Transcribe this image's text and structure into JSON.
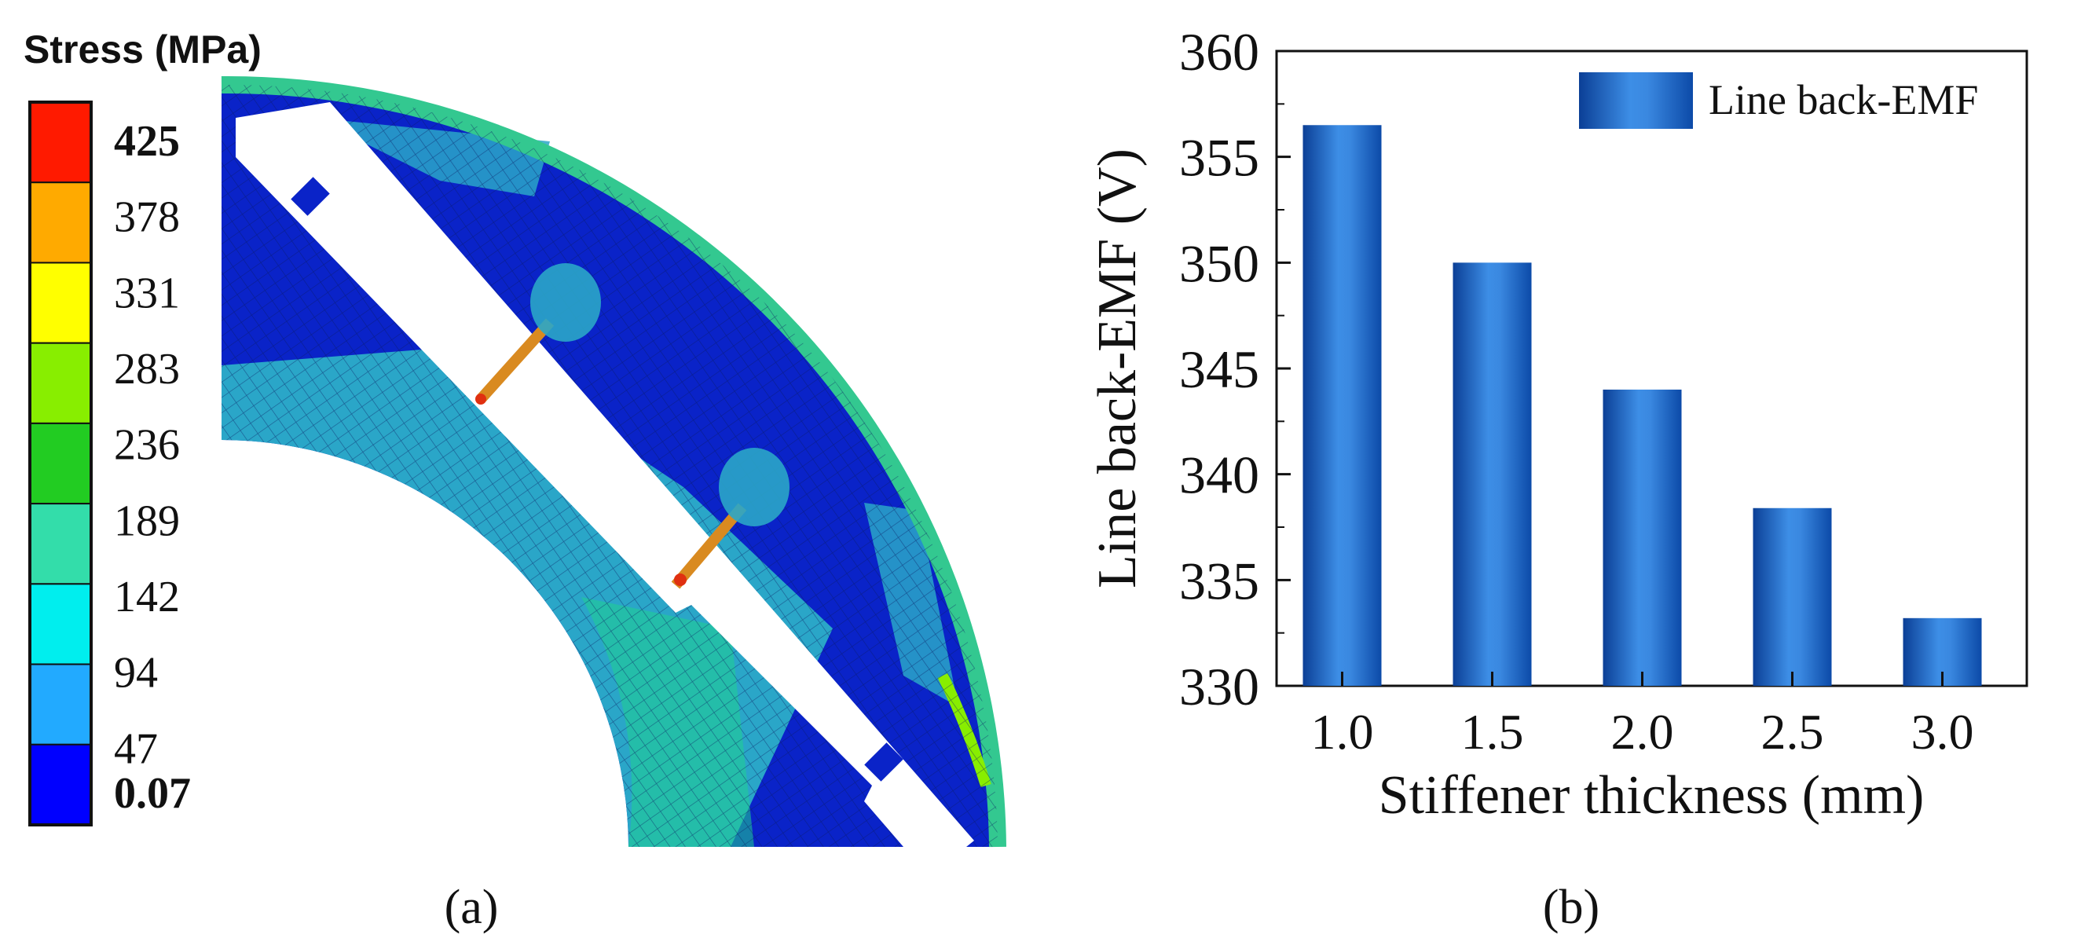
{
  "panel_a": {
    "label": "(a)",
    "colorbar": {
      "title": "Stress (MPa)",
      "unit": "MPa",
      "levels": [
        "425",
        "378",
        "331",
        "283",
        "236",
        "189",
        "142",
        "94",
        "47",
        "0.07"
      ],
      "colors": [
        "#ff1a00",
        "#ffaa00",
        "#ffff00",
        "#88ee00",
        "#22cc22",
        "#33ddaa",
        "#00eeee",
        "#22aaff",
        "#0000ff"
      ],
      "bold_levels": [
        "425",
        "0.07"
      ]
    },
    "mesh_colors": {
      "low": "#0a23c8",
      "mid": "#2aa6c8",
      "high": "#1fcf8f",
      "stiffener": "#d98a20",
      "hot": "#e03010"
    }
  },
  "panel_b": {
    "label": "(b)",
    "chart_data": {
      "type": "bar",
      "categories": [
        "1.0",
        "1.5",
        "2.0",
        "2.5",
        "3.0"
      ],
      "series": [
        {
          "name": "Line back-EMF",
          "values": [
            356.5,
            350.0,
            344.0,
            338.4,
            333.2
          ]
        }
      ],
      "xlabel": "Stiffener thickness (mm)",
      "ylabel": "Line back-EMF (V)",
      "ylim": [
        330,
        360
      ],
      "yticks": [
        "330",
        "335",
        "340",
        "345",
        "350",
        "355",
        "360"
      ],
      "legend_position": "top-right",
      "grid": false,
      "bar_color": "#1f5fbf"
    }
  }
}
